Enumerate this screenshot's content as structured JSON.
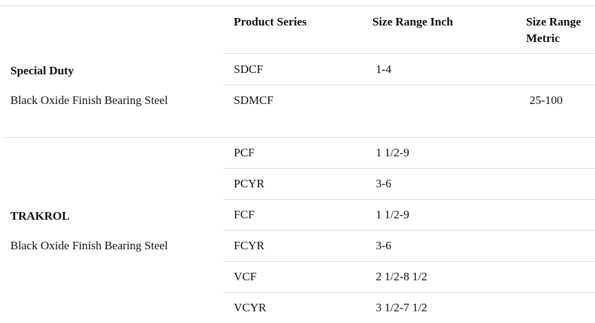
{
  "table": {
    "headers": [
      "Product Series",
      "Size Range Inch",
      "Size Range Metric"
    ],
    "groups": [
      {
        "name": "Special Duty",
        "description": "Black Oxide Finish Bearing Steel",
        "rows": [
          [
            "SDCF",
            "1-4",
            null
          ],
          [
            "SDMCF",
            null,
            "25-100"
          ]
        ]
      },
      {
        "name": "TRAKROL",
        "description": "Black Oxide Finish Bearing Steel",
        "rows": [
          [
            "PCF",
            "1 1/2-9",
            null
          ],
          [
            "PCYR",
            "3-6",
            null
          ],
          [
            "FCF",
            "1 1/2-9",
            null
          ],
          [
            "FCYR",
            "3-6",
            null
          ],
          [
            "VCF",
            "2 1/2-8 1/2",
            null
          ],
          [
            "VCYR",
            "3 1/2-7 1/2",
            null
          ]
        ]
      }
    ]
  }
}
